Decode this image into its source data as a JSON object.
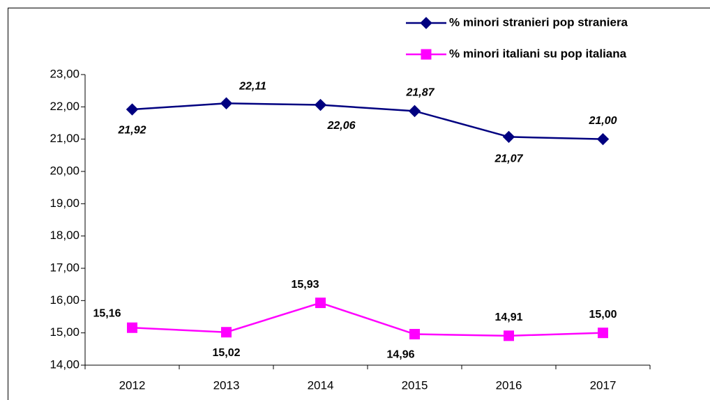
{
  "chart_data": {
    "type": "line",
    "categories": [
      "2012",
      "2013",
      "2014",
      "2015",
      "2016",
      "2017"
    ],
    "series": [
      {
        "name": "% minori stranieri pop straniera",
        "color": "#000080",
        "marker": "diamond",
        "values": [
          21.92,
          22.11,
          22.06,
          21.87,
          21.07,
          21.0
        ],
        "value_labels": [
          "21,92",
          "22,11",
          "22,06",
          "21,87",
          "21,07",
          "21,00"
        ]
      },
      {
        "name": "% minori italiani su pop italiana",
        "color": "#ff00ff",
        "marker": "square",
        "values": [
          15.16,
          15.02,
          15.93,
          14.96,
          14.91,
          15.0
        ],
        "value_labels": [
          "15,16",
          "15,02",
          "15,93",
          "14,96",
          "14,91",
          "15,00"
        ]
      }
    ],
    "ylim": [
      14,
      23
    ],
    "yticks": [
      {
        "value": 14,
        "label": "14,00"
      },
      {
        "value": 15,
        "label": "15,00"
      },
      {
        "value": 16,
        "label": "16,00"
      },
      {
        "value": 17,
        "label": "17,00"
      },
      {
        "value": 18,
        "label": "18,00"
      },
      {
        "value": 19,
        "label": "19,00"
      },
      {
        "value": 20,
        "label": "20,00"
      },
      {
        "value": 21,
        "label": "21,00"
      },
      {
        "value": 22,
        "label": "22,00"
      },
      {
        "value": 23,
        "label": "23,00"
      }
    ],
    "grid": false,
    "legend": "top-right"
  }
}
